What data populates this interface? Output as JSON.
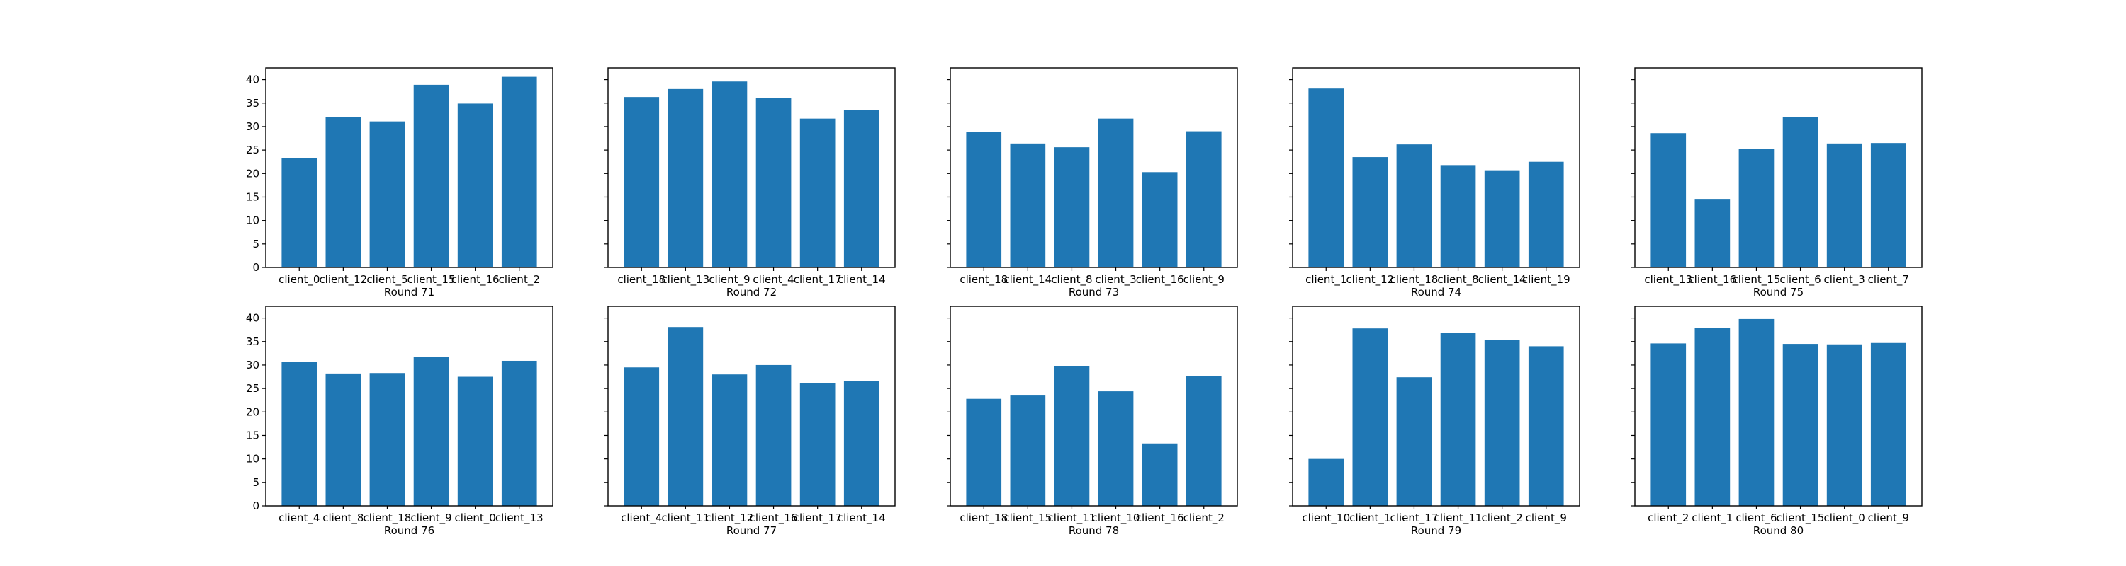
{
  "chart_data": [
    {
      "type": "bar",
      "xlabel": "Round 71",
      "categories": [
        "client_0",
        "client_12",
        "client_5",
        "client_15",
        "client_16",
        "client_2"
      ],
      "values": [
        23.3,
        32.0,
        31.1,
        38.9,
        34.9,
        40.6
      ],
      "ylim": [
        0,
        42.5
      ],
      "yticks": [
        0,
        5,
        10,
        15,
        20,
        25,
        30,
        35,
        40
      ],
      "color": "#1f77b4",
      "grid": false
    },
    {
      "type": "bar",
      "xlabel": "Round 72",
      "categories": [
        "client_18",
        "client_13",
        "client_9",
        "client_4",
        "client_17",
        "client_14"
      ],
      "values": [
        36.3,
        38.0,
        39.6,
        36.1,
        31.7,
        33.5
      ],
      "ylim": [
        0,
        42.5
      ],
      "yticks": [
        0,
        5,
        10,
        15,
        20,
        25,
        30,
        35,
        40
      ],
      "color": "#1f77b4",
      "grid": false
    },
    {
      "type": "bar",
      "xlabel": "Round 73",
      "categories": [
        "client_18",
        "client_14",
        "client_8",
        "client_3",
        "client_16",
        "client_9"
      ],
      "values": [
        28.8,
        26.4,
        25.6,
        31.7,
        20.3,
        29.0
      ],
      "ylim": [
        0,
        42.5
      ],
      "yticks": [
        0,
        5,
        10,
        15,
        20,
        25,
        30,
        35,
        40
      ],
      "color": "#1f77b4",
      "grid": false
    },
    {
      "type": "bar",
      "xlabel": "Round 74",
      "categories": [
        "client_1",
        "client_12",
        "client_18",
        "client_8",
        "client_14",
        "client_19"
      ],
      "values": [
        38.1,
        23.5,
        26.2,
        21.8,
        20.7,
        22.5
      ],
      "ylim": [
        0,
        42.5
      ],
      "yticks": [
        0,
        5,
        10,
        15,
        20,
        25,
        30,
        35,
        40
      ],
      "color": "#1f77b4",
      "grid": false
    },
    {
      "type": "bar",
      "xlabel": "Round 75",
      "categories": [
        "client_13",
        "client_16",
        "client_15",
        "client_6",
        "client_3",
        "client_7"
      ],
      "values": [
        28.6,
        14.6,
        25.3,
        32.1,
        26.4,
        26.5
      ],
      "ylim": [
        0,
        42.5
      ],
      "yticks": [
        0,
        5,
        10,
        15,
        20,
        25,
        30,
        35,
        40
      ],
      "color": "#1f77b4",
      "grid": false
    },
    {
      "type": "bar",
      "xlabel": "Round 76",
      "categories": [
        "client_4",
        "client_8",
        "client_18",
        "client_9",
        "client_0",
        "client_13"
      ],
      "values": [
        30.7,
        28.2,
        28.3,
        31.8,
        27.5,
        30.9
      ],
      "ylim": [
        0,
        42.5
      ],
      "yticks": [
        0,
        5,
        10,
        15,
        20,
        25,
        30,
        35,
        40
      ],
      "color": "#1f77b4",
      "grid": false
    },
    {
      "type": "bar",
      "xlabel": "Round 77",
      "categories": [
        "client_4",
        "client_11",
        "client_12",
        "client_16",
        "client_17",
        "client_14"
      ],
      "values": [
        29.5,
        38.1,
        28.0,
        30.0,
        26.2,
        26.6
      ],
      "ylim": [
        0,
        42.5
      ],
      "yticks": [
        0,
        5,
        10,
        15,
        20,
        25,
        30,
        35,
        40
      ],
      "color": "#1f77b4",
      "grid": false
    },
    {
      "type": "bar",
      "xlabel": "Round 78",
      "categories": [
        "client_18",
        "client_15",
        "client_11",
        "client_10",
        "client_16",
        "client_2"
      ],
      "values": [
        22.8,
        23.5,
        29.8,
        24.4,
        13.3,
        27.6
      ],
      "ylim": [
        0,
        42.5
      ],
      "yticks": [
        0,
        5,
        10,
        15,
        20,
        25,
        30,
        35,
        40
      ],
      "color": "#1f77b4",
      "grid": false
    },
    {
      "type": "bar",
      "xlabel": "Round 79",
      "categories": [
        "client_10",
        "client_1",
        "client_17",
        "client_11",
        "client_2",
        "client_9"
      ],
      "values": [
        10.0,
        37.8,
        27.4,
        36.9,
        35.3,
        34.0
      ],
      "ylim": [
        0,
        42.5
      ],
      "yticks": [
        0,
        5,
        10,
        15,
        20,
        25,
        30,
        35,
        40
      ],
      "color": "#1f77b4",
      "grid": false
    },
    {
      "type": "bar",
      "xlabel": "Round 80",
      "categories": [
        "client_2",
        "client_1",
        "client_6",
        "client_15",
        "client_0",
        "client_9"
      ],
      "values": [
        34.6,
        37.9,
        39.8,
        34.5,
        34.4,
        34.7
      ],
      "ylim": [
        0,
        42.5
      ],
      "yticks": [
        0,
        5,
        10,
        15,
        20,
        25,
        30,
        35,
        40
      ],
      "color": "#1f77b4",
      "grid": false
    }
  ]
}
